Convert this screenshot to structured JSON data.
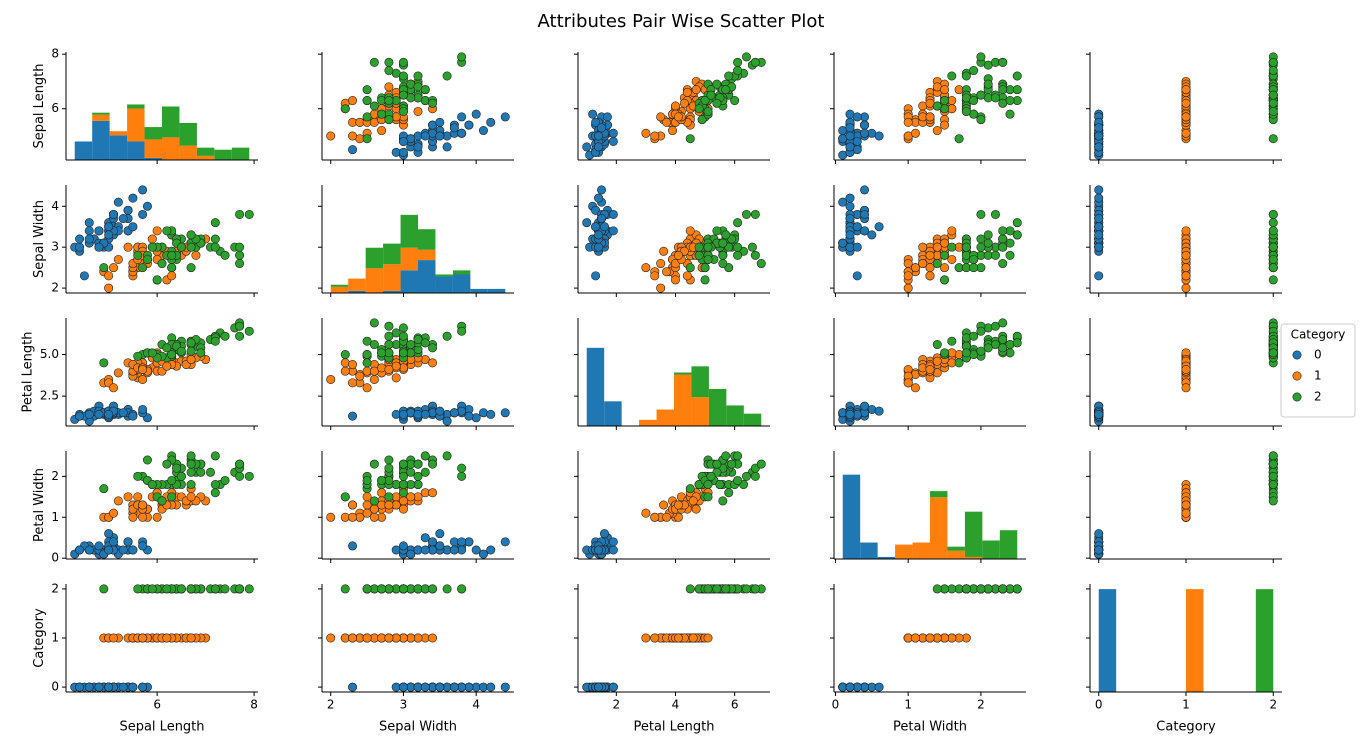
{
  "chart_data": {
    "type": "pairplot",
    "title": "Attributes Pair Wise Scatter Plot",
    "legend_title": "Category",
    "legend_loc": "center right",
    "variables": [
      {
        "label": "Sepal Length",
        "lim": [
          4.12,
          8.08
        ],
        "xticks": [
          6,
          8
        ],
        "yticks": [
          6,
          8
        ],
        "bins": [
          4.3,
          4.66,
          5.02,
          5.38,
          5.74,
          6.1,
          6.46,
          6.82,
          7.18,
          7.54,
          7.9
        ]
      },
      {
        "label": "Sepal Width",
        "lim": [
          1.88,
          4.52
        ],
        "xticks": [
          2,
          3,
          4
        ],
        "yticks": [
          2,
          3,
          4
        ],
        "bins": [
          2.0,
          2.24,
          2.48,
          2.72,
          2.96,
          3.2,
          3.44,
          3.68,
          3.92,
          4.16,
          4.4
        ]
      },
      {
        "label": "Petal Length",
        "lim": [
          0.705,
          7.195
        ],
        "xticks": [
          2,
          4,
          6
        ],
        "yticks": [
          2.5,
          {
            "value": 5,
            "label": "5.0"
          }
        ],
        "bins": [
          1.0,
          1.59,
          2.18,
          2.77,
          3.36,
          3.95,
          4.54,
          5.13,
          5.72,
          6.31,
          6.9
        ]
      },
      {
        "label": "Petal Width",
        "lim": [
          -0.02,
          2.62
        ],
        "xticks": [
          0,
          1,
          2
        ],
        "yticks": [
          0,
          1,
          2
        ],
        "bins": [
          0.1,
          0.34,
          0.58,
          0.82,
          1.06,
          1.3,
          1.54,
          1.78,
          2.02,
          2.26,
          2.5
        ]
      },
      {
        "label": "Category",
        "lim": [
          -0.1,
          2.1
        ],
        "xticks": [
          0,
          1,
          2
        ],
        "yticks": [
          0,
          1,
          2
        ],
        "bins": [
          0,
          0.2,
          0.4,
          0.6,
          0.8,
          1.0,
          1.2,
          1.4,
          1.6,
          1.8,
          2.0
        ]
      }
    ],
    "series": [
      {
        "name": "0",
        "code": 0,
        "color": "#1f77b4",
        "columns": [
          [
            5.1,
            4.9,
            4.7,
            4.6,
            5.0,
            5.4,
            4.6,
            5.0,
            4.4,
            4.9,
            5.4,
            4.8,
            4.8,
            4.3,
            5.8,
            5.7,
            5.4,
            5.1,
            5.7,
            5.1,
            5.4,
            5.1,
            4.6,
            5.1,
            4.8,
            5.0,
            5.0,
            5.2,
            5.2,
            4.7,
            4.8,
            5.4,
            5.2,
            5.5,
            4.9,
            5.0,
            5.5,
            4.9,
            4.4,
            5.1,
            5.0,
            4.5,
            4.4,
            5.0,
            5.1,
            4.8,
            5.1,
            4.6,
            5.3,
            5.0
          ],
          [
            3.5,
            3.0,
            3.2,
            3.1,
            3.6,
            3.9,
            3.4,
            3.4,
            2.9,
            3.1,
            3.7,
            3.4,
            3.0,
            3.0,
            4.0,
            4.4,
            3.9,
            3.5,
            3.8,
            3.8,
            3.4,
            3.7,
            3.6,
            3.3,
            3.4,
            3.0,
            3.4,
            3.5,
            3.4,
            3.2,
            3.1,
            3.4,
            4.1,
            4.2,
            3.1,
            3.2,
            3.5,
            3.1,
            3.0,
            3.4,
            3.5,
            2.3,
            3.2,
            3.5,
            3.8,
            3.0,
            3.8,
            3.2,
            3.7,
            3.3
          ],
          [
            1.4,
            1.4,
            1.3,
            1.5,
            1.4,
            1.7,
            1.4,
            1.5,
            1.4,
            1.5,
            1.5,
            1.6,
            1.4,
            1.1,
            1.2,
            1.5,
            1.3,
            1.4,
            1.7,
            1.5,
            1.7,
            1.5,
            1.0,
            1.7,
            1.9,
            1.6,
            1.6,
            1.5,
            1.4,
            1.6,
            1.6,
            1.5,
            1.5,
            1.4,
            1.5,
            1.2,
            1.3,
            1.5,
            1.3,
            1.5,
            1.3,
            1.3,
            1.3,
            1.6,
            1.9,
            1.4,
            1.6,
            1.4,
            1.5,
            1.4
          ],
          [
            0.2,
            0.2,
            0.2,
            0.2,
            0.2,
            0.4,
            0.3,
            0.2,
            0.2,
            0.1,
            0.2,
            0.2,
            0.1,
            0.1,
            0.2,
            0.4,
            0.4,
            0.3,
            0.3,
            0.3,
            0.2,
            0.4,
            0.2,
            0.5,
            0.2,
            0.2,
            0.4,
            0.2,
            0.2,
            0.2,
            0.2,
            0.4,
            0.1,
            0.2,
            0.1,
            0.2,
            0.2,
            0.1,
            0.2,
            0.2,
            0.3,
            0.3,
            0.2,
            0.6,
            0.4,
            0.3,
            0.2,
            0.2,
            0.2,
            0.2
          ]
        ],
        "hist_counts": [
          [
            9,
            19,
            12,
            9,
            1,
            0,
            0,
            0,
            0,
            0
          ],
          [
            0,
            1,
            0,
            1,
            11,
            16,
            8,
            9,
            2,
            2
          ],
          [
            38,
            12,
            0,
            0,
            0,
            0,
            0,
            0,
            0,
            0
          ],
          [
            41,
            8,
            1,
            0,
            0,
            0,
            0,
            0,
            0,
            0
          ],
          [
            50,
            0,
            0,
            0,
            0,
            0,
            0,
            0,
            0,
            0
          ]
        ]
      },
      {
        "name": "1",
        "code": 1,
        "color": "#ff7f0e",
        "columns": [
          [
            7.0,
            6.4,
            6.9,
            5.5,
            6.5,
            5.7,
            6.3,
            4.9,
            6.6,
            5.2,
            5.0,
            5.9,
            6.0,
            6.1,
            5.6,
            6.7,
            5.6,
            5.8,
            6.2,
            5.6,
            5.9,
            6.1,
            6.3,
            6.1,
            6.4,
            6.6,
            6.8,
            6.7,
            6.0,
            5.7,
            5.5,
            5.5,
            5.8,
            6.0,
            5.4,
            6.0,
            6.7,
            6.3,
            5.6,
            5.5,
            5.5,
            6.1,
            5.8,
            5.0,
            5.6,
            5.7,
            5.7,
            6.2,
            5.1,
            5.7
          ],
          [
            3.2,
            3.2,
            3.1,
            2.3,
            2.8,
            2.8,
            3.3,
            2.4,
            2.9,
            2.7,
            2.0,
            3.0,
            2.2,
            2.9,
            2.9,
            3.1,
            3.0,
            2.7,
            2.2,
            2.5,
            3.2,
            2.8,
            2.5,
            2.8,
            2.9,
            3.0,
            2.8,
            3.0,
            2.9,
            2.6,
            2.4,
            2.4,
            2.7,
            2.7,
            3.0,
            3.4,
            3.1,
            2.3,
            3.0,
            2.5,
            2.6,
            3.0,
            2.6,
            2.3,
            2.7,
            3.0,
            2.9,
            2.9,
            2.5,
            2.8
          ],
          [
            4.7,
            4.5,
            4.9,
            4.0,
            4.6,
            4.5,
            4.7,
            3.3,
            4.6,
            3.9,
            3.5,
            4.2,
            4.0,
            4.7,
            3.6,
            4.4,
            4.5,
            4.1,
            4.5,
            3.9,
            4.8,
            4.0,
            4.9,
            4.7,
            4.3,
            4.4,
            4.8,
            5.0,
            4.5,
            3.5,
            3.8,
            3.7,
            3.9,
            5.1,
            4.5,
            4.5,
            4.7,
            4.4,
            4.1,
            4.0,
            4.4,
            4.6,
            4.0,
            3.3,
            4.2,
            4.2,
            4.2,
            4.3,
            3.0,
            4.1
          ],
          [
            1.4,
            1.5,
            1.5,
            1.3,
            1.5,
            1.3,
            1.6,
            1.0,
            1.3,
            1.4,
            1.0,
            1.5,
            1.0,
            1.4,
            1.3,
            1.4,
            1.5,
            1.0,
            1.5,
            1.1,
            1.8,
            1.3,
            1.5,
            1.2,
            1.3,
            1.4,
            1.4,
            1.7,
            1.5,
            1.0,
            1.1,
            1.0,
            1.2,
            1.6,
            1.5,
            1.6,
            1.5,
            1.3,
            1.3,
            1.3,
            1.2,
            1.4,
            1.2,
            1.0,
            1.3,
            1.2,
            1.3,
            1.3,
            1.1,
            1.3
          ]
        ],
        "hist_counts": [
          [
            0,
            3,
            2,
            16,
            9,
            11,
            7,
            2,
            0,
            0
          ],
          [
            3,
            6,
            12,
            13,
            11,
            5,
            0,
            0,
            0,
            0
          ],
          [
            0,
            0,
            0,
            3,
            8,
            25,
            14,
            0,
            0,
            0
          ],
          [
            0,
            0,
            0,
            7,
            8,
            30,
            4,
            1,
            0,
            0
          ],
          [
            0,
            0,
            0,
            0,
            0,
            50,
            0,
            0,
            0,
            0
          ]
        ]
      },
      {
        "name": "2",
        "code": 2,
        "color": "#2ca02c",
        "columns": [
          [
            6.3,
            5.8,
            7.1,
            6.3,
            6.5,
            7.6,
            4.9,
            7.3,
            6.7,
            7.2,
            6.5,
            6.4,
            6.8,
            5.7,
            5.8,
            6.4,
            6.5,
            7.7,
            7.7,
            6.0,
            6.9,
            5.6,
            7.7,
            6.3,
            6.7,
            7.2,
            6.2,
            6.1,
            6.4,
            7.2,
            7.4,
            7.9,
            6.4,
            6.3,
            6.1,
            7.7,
            6.3,
            6.4,
            6.0,
            6.9,
            6.7,
            6.9,
            5.8,
            6.8,
            6.7,
            6.7,
            6.3,
            6.5,
            6.2,
            5.9
          ],
          [
            3.3,
            2.7,
            3.0,
            2.9,
            3.0,
            3.0,
            2.5,
            2.9,
            2.5,
            3.6,
            3.2,
            2.7,
            3.0,
            2.5,
            2.8,
            3.2,
            3.0,
            3.8,
            2.6,
            2.2,
            3.2,
            2.8,
            2.8,
            2.7,
            3.3,
            3.2,
            2.8,
            3.0,
            2.8,
            3.0,
            2.8,
            3.8,
            2.8,
            2.8,
            2.6,
            3.0,
            3.4,
            3.1,
            3.0,
            3.1,
            3.1,
            3.1,
            2.7,
            3.2,
            3.3,
            3.0,
            2.5,
            3.0,
            3.4,
            3.0
          ],
          [
            6.0,
            5.1,
            5.9,
            5.6,
            5.8,
            6.6,
            4.5,
            6.3,
            5.8,
            6.1,
            5.1,
            5.3,
            5.5,
            5.0,
            5.1,
            5.3,
            5.5,
            6.7,
            6.9,
            5.0,
            5.7,
            4.9,
            6.7,
            4.9,
            5.7,
            6.0,
            4.8,
            4.9,
            5.6,
            5.8,
            6.1,
            6.4,
            5.6,
            5.1,
            5.6,
            6.1,
            5.6,
            5.5,
            4.8,
            5.4,
            5.6,
            5.1,
            5.1,
            5.9,
            5.7,
            5.2,
            5.0,
            5.2,
            5.4,
            5.1
          ],
          [
            2.5,
            1.9,
            2.1,
            1.8,
            2.2,
            2.1,
            1.7,
            1.8,
            1.8,
            2.5,
            2.0,
            1.9,
            2.1,
            2.0,
            2.4,
            2.3,
            1.8,
            2.2,
            2.3,
            1.5,
            2.3,
            2.0,
            2.0,
            1.8,
            2.1,
            1.8,
            1.8,
            1.8,
            2.1,
            1.6,
            1.9,
            2.0,
            2.2,
            1.5,
            1.4,
            2.3,
            2.4,
            1.8,
            1.8,
            2.1,
            2.4,
            2.3,
            1.9,
            2.3,
            2.5,
            2.3,
            1.9,
            2.0,
            2.3,
            1.8
          ]
        ],
        "hist_counts": [
          [
            0,
            1,
            0,
            2,
            6,
            15,
            11,
            4,
            5,
            6
          ],
          [
            1,
            0,
            10,
            10,
            16,
            10,
            1,
            2,
            0,
            0
          ],
          [
            0,
            0,
            0,
            0,
            0,
            1,
            15,
            18,
            10,
            6
          ],
          [
            0,
            0,
            0,
            0,
            0,
            3,
            2,
            22,
            9,
            14
          ],
          [
            0,
            0,
            0,
            0,
            0,
            0,
            0,
            0,
            0,
            50
          ]
        ]
      }
    ]
  }
}
